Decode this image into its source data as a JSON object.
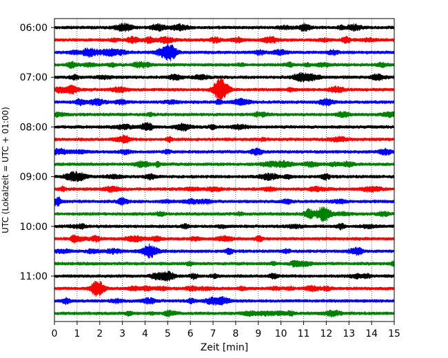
{
  "chart_data": {
    "type": "line",
    "title": "",
    "xlabel": "Zeit  [min]",
    "ylabel": "UTC (Lokalzeit = UTC + 01:00)",
    "xlim": [
      0,
      15
    ],
    "x_ticks": [
      "0",
      "1",
      "2",
      "3",
      "4",
      "5",
      "6",
      "7",
      "8",
      "9",
      "10",
      "11",
      "12",
      "13",
      "14",
      "15"
    ],
    "y_ticks": [
      "06:00",
      "07:00",
      "08:00",
      "09:00",
      "10:00",
      "11:00"
    ],
    "grid": "vertical dotted",
    "trace_colors": [
      "#000000",
      "#ff0000",
      "#0000ff",
      "#008000"
    ],
    "trace_interval_minutes": 15,
    "traces": [
      {
        "start": "06:00",
        "color": "#000000",
        "events": []
      },
      {
        "start": "06:15",
        "color": "#ff0000",
        "events": []
      },
      {
        "start": "06:30",
        "color": "#0000ff",
        "events": [
          {
            "time_min": 5.1,
            "amplitude": "large"
          }
        ]
      },
      {
        "start": "06:45",
        "color": "#008000",
        "events": []
      },
      {
        "start": "07:00",
        "color": "#000000",
        "events": []
      },
      {
        "start": "07:15",
        "color": "#ff0000",
        "events": [
          {
            "time_min": 7.3,
            "amplitude": "large"
          }
        ]
      },
      {
        "start": "07:30",
        "color": "#0000ff",
        "events": []
      },
      {
        "start": "07:45",
        "color": "#008000",
        "events": []
      },
      {
        "start": "08:00",
        "color": "#000000",
        "events": []
      },
      {
        "start": "08:15",
        "color": "#ff0000",
        "events": []
      },
      {
        "start": "08:30",
        "color": "#0000ff",
        "events": []
      },
      {
        "start": "08:45",
        "color": "#008000",
        "events": []
      },
      {
        "start": "09:00",
        "color": "#000000",
        "events": []
      },
      {
        "start": "09:15",
        "color": "#ff0000",
        "events": []
      },
      {
        "start": "09:30",
        "color": "#0000ff",
        "events": []
      },
      {
        "start": "09:45",
        "color": "#008000",
        "events": [
          {
            "time_min": 11.9,
            "amplitude": "large"
          }
        ]
      },
      {
        "start": "10:00",
        "color": "#000000",
        "events": []
      },
      {
        "start": "10:15",
        "color": "#ff0000",
        "events": []
      },
      {
        "start": "10:30",
        "color": "#0000ff",
        "events": []
      },
      {
        "start": "10:45",
        "color": "#008000",
        "events": []
      },
      {
        "start": "11:00",
        "color": "#000000",
        "events": []
      },
      {
        "start": "11:15",
        "color": "#ff0000",
        "events": [
          {
            "time_min": 1.9,
            "amplitude": "large"
          }
        ]
      },
      {
        "start": "11:30",
        "color": "#0000ff",
        "events": []
      },
      {
        "start": "11:45",
        "color": "#008000",
        "events": []
      }
    ]
  }
}
